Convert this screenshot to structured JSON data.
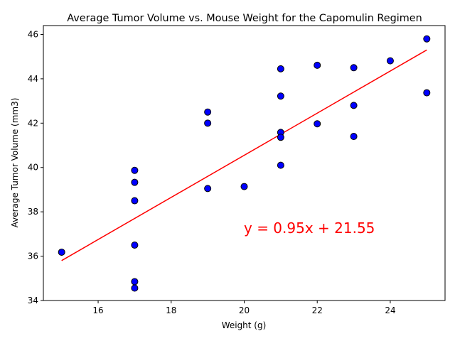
{
  "chart_data": {
    "type": "scatter",
    "title": "Average Tumor Volume vs. Mouse Weight for the Capomulin Regimen",
    "xlabel": "Weight (g)",
    "ylabel": "Average Tumor Volume (mm3)",
    "xlim": [
      14.5,
      25.5
    ],
    "ylim": [
      34,
      46.4
    ],
    "xticks": [
      16,
      18,
      20,
      22,
      24
    ],
    "yticks": [
      34,
      36,
      38,
      40,
      42,
      44,
      46
    ],
    "grid": false,
    "marker_color": "#0000ff",
    "marker_edge": "#000000",
    "line_color": "#ff0000",
    "points": [
      {
        "x": 15,
        "y": 36.18
      },
      {
        "x": 17,
        "y": 39.87
      },
      {
        "x": 17,
        "y": 39.33
      },
      {
        "x": 17,
        "y": 38.5
      },
      {
        "x": 17,
        "y": 36.5
      },
      {
        "x": 17,
        "y": 34.85
      },
      {
        "x": 17,
        "y": 34.56
      },
      {
        "x": 19,
        "y": 42.5
      },
      {
        "x": 19,
        "y": 42.0
      },
      {
        "x": 19,
        "y": 39.05
      },
      {
        "x": 20,
        "y": 39.14
      },
      {
        "x": 21,
        "y": 44.45
      },
      {
        "x": 21,
        "y": 43.22
      },
      {
        "x": 21,
        "y": 41.58
      },
      {
        "x": 21,
        "y": 41.36
      },
      {
        "x": 21,
        "y": 40.1
      },
      {
        "x": 22,
        "y": 44.61
      },
      {
        "x": 22,
        "y": 41.97
      },
      {
        "x": 23,
        "y": 44.5
      },
      {
        "x": 23,
        "y": 42.8
      },
      {
        "x": 23,
        "y": 41.4
      },
      {
        "x": 24,
        "y": 44.81
      },
      {
        "x": 25,
        "y": 45.8
      },
      {
        "x": 25,
        "y": 43.37
      }
    ],
    "regression": {
      "slope": 0.95,
      "intercept": 21.55,
      "x_range": [
        15,
        25
      ],
      "label": "y = 0.95x + 21.55"
    }
  }
}
